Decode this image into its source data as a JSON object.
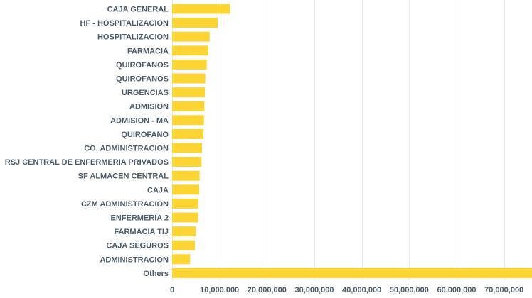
{
  "chart_data": {
    "type": "bar",
    "orientation": "horizontal",
    "title": "",
    "xlabel": "",
    "ylabel": "",
    "categories": [
      "CAJA GENERAL",
      "HF - HOSPITALIZACION",
      "HOSPITALIZACION",
      "FARMACIA",
      "QUIROFANOS",
      "QUIRÓFANOS",
      "URGENCIAS",
      "ADMISION",
      "ADMISION - MA",
      "QUIROFANO",
      "CO. ADMINISTRACION",
      "RSJ CENTRAL DE ENFERMERIA PRIVADOS",
      "SF ALMACEN CENTRAL",
      "CAJA",
      "CZM ADMINISTRACION",
      "ENFERMERÍA 2",
      "FARMACIA TIJ",
      "CAJA SEGUROS",
      "ADMINISTRACION",
      "Others"
    ],
    "values": [
      12200000,
      9600000,
      7900000,
      7600000,
      7300000,
      7000000,
      6900000,
      6800000,
      6700000,
      6600000,
      6300000,
      6200000,
      5800000,
      5700000,
      5500000,
      5500000,
      5000000,
      4800000,
      3800000,
      78000000
    ],
    "xlim": [
      0,
      78000000
    ],
    "xticks": [
      0,
      10000000,
      20000000,
      30000000,
      40000000,
      50000000,
      60000000,
      70000000
    ],
    "xtick_labels": [
      "0",
      "10,000,000",
      "20,000,000",
      "30,000,000",
      "40,000,000",
      "50,000,000",
      "60,000,000",
      "70,000,000"
    ],
    "grid": true,
    "legend": "none",
    "bar_color": "#fcd535"
  }
}
